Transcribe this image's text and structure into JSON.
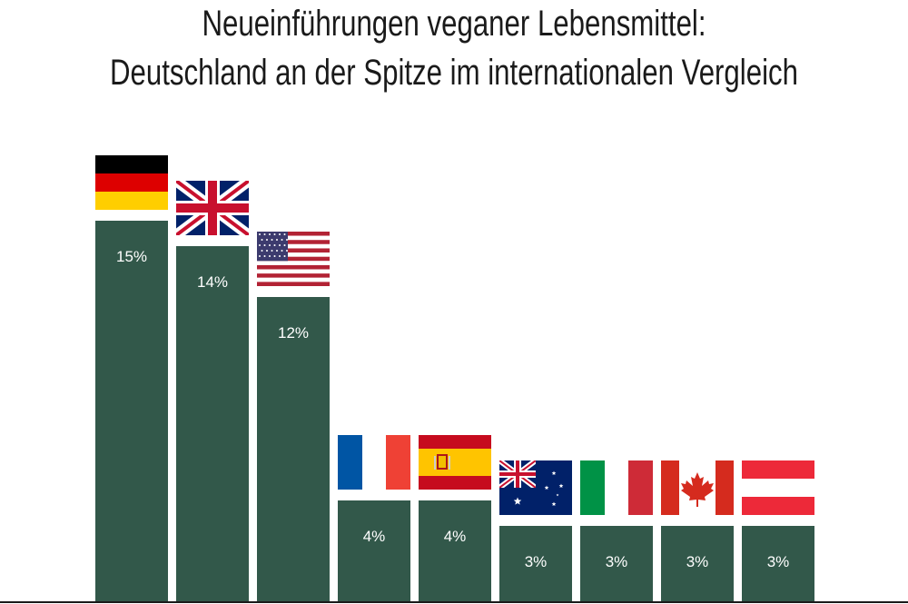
{
  "chart_data": {
    "type": "bar",
    "title_lines": [
      "Neueinführungen veganer Lebensmittel:",
      "Deutschland an der Spitze im internationalen Vergleich"
    ],
    "categories": [
      "DE",
      "GB",
      "US",
      "FR",
      "ES",
      "AU",
      "IT",
      "CA",
      "AT"
    ],
    "values": [
      15,
      14,
      12,
      4,
      4,
      3,
      3,
      3,
      3
    ],
    "value_labels": [
      "15%",
      "14%",
      "12%",
      "4%",
      "4%",
      "3%",
      "3%",
      "3%",
      "3%"
    ],
    "flags": [
      "germany-flag-icon",
      "uk-flag-icon",
      "usa-flag-icon",
      "france-flag-icon",
      "spain-flag-icon",
      "australia-flag-icon",
      "italy-flag-icon",
      "canada-flag-icon",
      "austria-flag-icon"
    ],
    "bar_color": "#32584a",
    "ylim": [
      0,
      15
    ]
  }
}
